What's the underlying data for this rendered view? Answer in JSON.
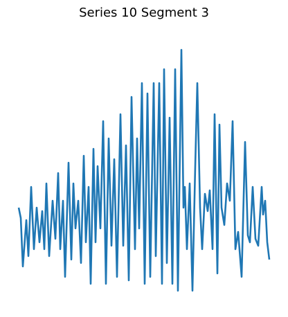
{
  "chart_data": {
    "type": "line",
    "title": "Series 10 Segment 3",
    "color": "#1f77b4",
    "x": [
      0,
      3,
      6,
      11,
      14,
      18,
      22,
      26,
      30,
      34,
      37,
      40,
      44,
      49,
      53,
      57,
      60,
      64,
      67,
      72,
      76,
      79,
      82,
      86,
      90,
      94,
      97,
      101,
      104,
      108,
      111,
      114,
      118,
      122,
      126,
      130,
      134,
      138,
      142,
      147,
      151,
      155,
      159,
      163,
      168,
      171,
      174,
      178,
      182,
      186,
      190,
      195,
      198,
      203,
      207,
      210,
      214,
      218,
      222,
      226,
      230,
      235,
      238,
      240,
      243,
      247,
      251,
      255,
      258,
      262,
      265,
      269,
      273,
      276,
      280,
      283,
      287,
      290,
      293,
      297,
      301,
      305,
      309,
      313,
      317,
      322,
      327,
      331,
      334,
      338,
      342,
      346,
      351,
      353,
      356,
      359,
      362
    ],
    "values": [
      130,
      115,
      45,
      112,
      60,
      160,
      70,
      130,
      80,
      125,
      70,
      165,
      60,
      140,
      85,
      180,
      70,
      140,
      30,
      195,
      55,
      165,
      100,
      140,
      50,
      205,
      80,
      160,
      20,
      215,
      80,
      190,
      100,
      255,
      20,
      230,
      75,
      200,
      30,
      265,
      75,
      220,
      25,
      290,
      70,
      230,
      100,
      310,
      20,
      295,
      30,
      310,
      60,
      310,
      20,
      330,
      50,
      260,
      20,
      330,
      10,
      358,
      130,
      160,
      70,
      165,
      10,
      190,
      310,
      130,
      70,
      150,
      125,
      155,
      70,
      265,
      35,
      250,
      130,
      105,
      165,
      140,
      255,
      70,
      95,
      30,
      225,
      90,
      80,
      160,
      85,
      75,
      160,
      120,
      140,
      80,
      55
    ],
    "xlim": [
      -10,
      372
    ],
    "ylim": [
      0,
      370
    ]
  }
}
